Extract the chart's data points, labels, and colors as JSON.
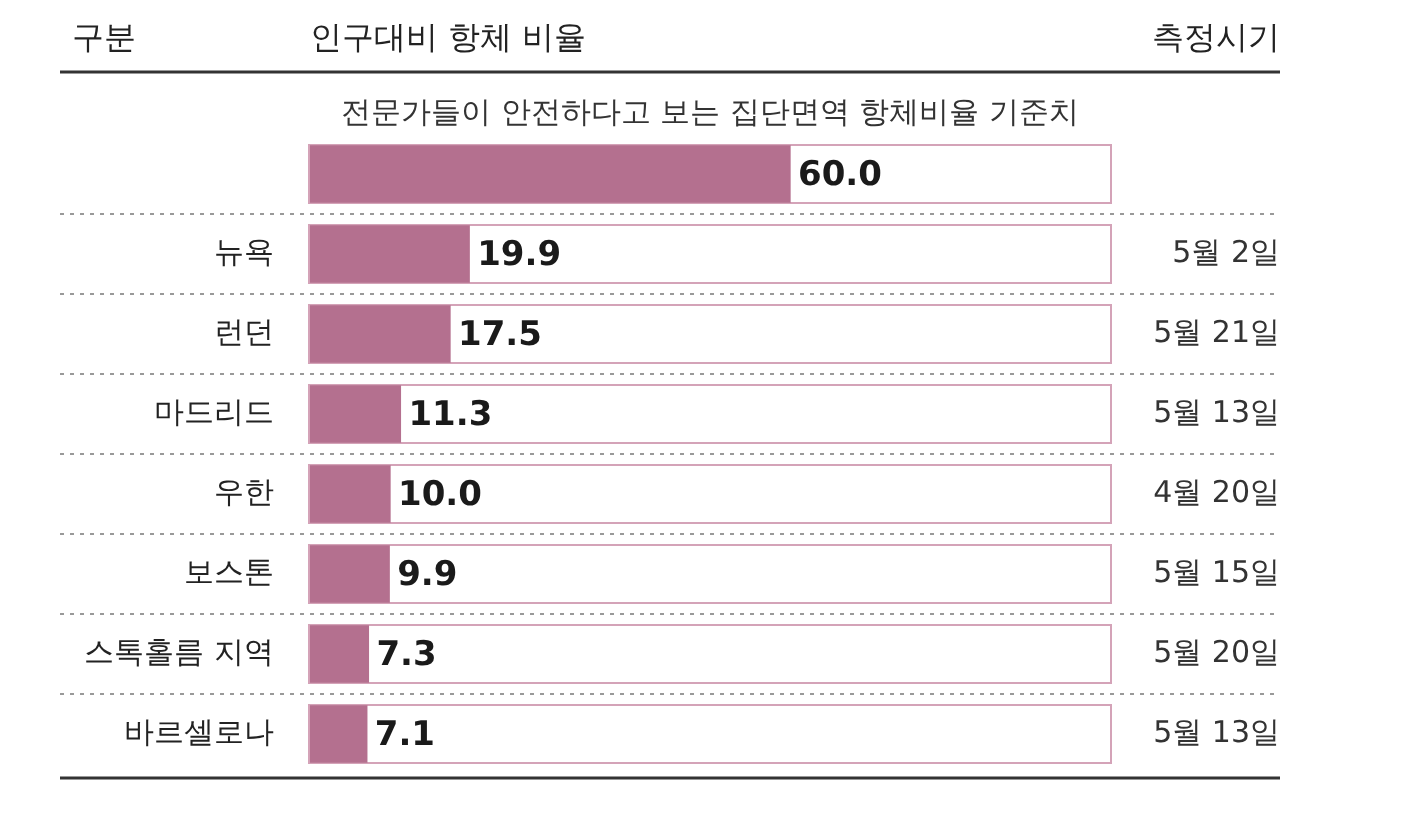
{
  "chart_data": {
    "type": "bar",
    "orientation": "horizontal",
    "ylabel": "구분",
    "xlabel": "인구대비 항체 비율",
    "y2label": "측정시기",
    "categories": [
      null,
      "뉴욕",
      "런던",
      "마드리드",
      "우한",
      "보스톤",
      "스톡홀름 지역",
      "바르셀로나"
    ],
    "values": [
      60.0,
      19.9,
      17.5,
      11.3,
      10.0,
      9.9,
      7.3,
      7.1
    ],
    "color": "#b4708f",
    "xlim": [
      0,
      100
    ],
    "tick_labels": "y",
    "grid": "y",
    "value_labels": [
      "60.0",
      "19.9",
      "17.5",
      "11.3",
      "10.0",
      "9.9",
      "7.3",
      "7.1"
    ],
    "annotations": [
      "전문가들이 안전하다고 보는 집단면역 항체비율 기준치",
      "5월 2일",
      "5월 21일",
      "5월 13일",
      "4월 20일",
      "5월 15일",
      "5월 20일",
      "5월 13일"
    ]
  }
}
